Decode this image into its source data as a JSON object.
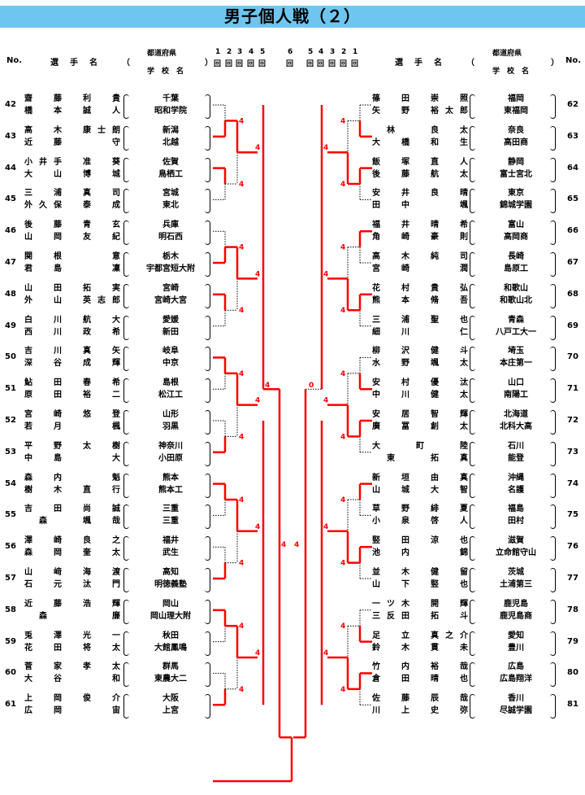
{
  "page": {
    "title": "男子個人戦（２）"
  },
  "headers": {
    "no": "No.",
    "name": "選　手　名",
    "open_paren": "（",
    "close_paren": "）",
    "pref": "都道府県",
    "school": "学　校　名",
    "rounds_left": [
      "1",
      "2",
      "3",
      "4",
      "5"
    ],
    "round_unit": "回",
    "round_center": "6",
    "rounds_right": [
      "5",
      "4",
      "3",
      "2",
      "1"
    ]
  },
  "left_entries": [
    {
      "no": "42",
      "p1": "齋　藤　利　貴",
      "p2": "橋　本　誠　人",
      "pref": "千葉",
      "school": "昭和学院"
    },
    {
      "no": "43",
      "p1": "高　木　康士朗",
      "p2": "近　藤　　　守",
      "pref": "新潟",
      "school": "北越"
    },
    {
      "no": "44",
      "p1": "小井手　准　葵",
      "p2": "大　山　博　城",
      "pref": "佐賀",
      "school": "鳥栖工"
    },
    {
      "no": "45",
      "p1": "三　浦　真　司",
      "p2": "外久保　泰　成",
      "pref": "宮城",
      "school": "東北"
    },
    {
      "no": "46",
      "p1": "後　藤　青　玄",
      "p2": "山　岡　友　紀",
      "pref": "兵庫",
      "school": "明石西"
    },
    {
      "no": "47",
      "p1": "関　根　　　意",
      "p2": "君　島　　　凜",
      "pref": "栃木",
      "school": "宇都宮短大附"
    },
    {
      "no": "48",
      "p1": "山　田　拓　実",
      "p2": "外　山　英志郎",
      "pref": "宮崎",
      "school": "宮崎大宮"
    },
    {
      "no": "49",
      "p1": "白　川　航　大",
      "p2": "西　川　政　希",
      "pref": "愛媛",
      "school": "新田"
    },
    {
      "no": "50",
      "p1": "吉　川　真　矢",
      "p2": "深　谷　成　輝",
      "pref": "岐阜",
      "school": "中京"
    },
    {
      "no": "51",
      "p1": "鮎　田　春　希",
      "p2": "原　田　裕　二",
      "pref": "島根",
      "school": "松江工"
    },
    {
      "no": "52",
      "p1": "宮　崎　悠　登",
      "p2": "若　月　　　楓",
      "pref": "山形",
      "school": "羽黒"
    },
    {
      "no": "53",
      "p1": "平　野　太　樹",
      "p2": "中　島　　　大",
      "pref": "神奈川",
      "school": "小田原"
    },
    {
      "no": "54",
      "p1": "森　内　　　魁",
      "p2": "樹　木　直　行",
      "pref": "熊本",
      "school": "熊本工"
    },
    {
      "no": "55",
      "p1": "吉　田　尚　誠",
      "p2": "　森　　颯　哉",
      "pref": "三重",
      "school": "三重"
    },
    {
      "no": "56",
      "p1": "澤　崎　良　之",
      "p2": "森　岡　奎　太",
      "pref": "福井",
      "school": "武生"
    },
    {
      "no": "57",
      "p1": "山　﨑　海　渡",
      "p2": "石　元　汰　門",
      "pref": "高知",
      "school": "明徳義塾"
    },
    {
      "no": "58",
      "p1": "近　藤　浩　輝",
      "p2": "　森　　　　廉",
      "pref": "岡山",
      "school": "岡山理大附"
    },
    {
      "no": "59",
      "p1": "兎　澤　光　一",
      "p2": "花　田　将　太",
      "pref": "秋田",
      "school": "大館鳳鳴"
    },
    {
      "no": "60",
      "p1": "菅　家　孝　太",
      "p2": "大　谷　　　和",
      "pref": "群馬",
      "school": "東農大二"
    },
    {
      "no": "61",
      "p1": "上　岡　俊　介",
      "p2": "広　岡　　　宙",
      "pref": "大阪",
      "school": "上宮"
    }
  ],
  "right_entries": [
    {
      "no": "62",
      "p1": "篠　田　崇　照",
      "p2": "矢　野　裕太郎",
      "pref": "福岡",
      "school": "東福岡"
    },
    {
      "no": "63",
      "p1": "　林　　良　太",
      "p2": "大　橋　和　生",
      "pref": "奈良",
      "school": "高田商"
    },
    {
      "no": "64",
      "p1": "飯　塚　直　人",
      "p2": "後　藤　航　太",
      "pref": "静岡",
      "school": "富士宮北"
    },
    {
      "no": "65",
      "p1": "安　井　良　晴",
      "p2": "田　中　　　颯",
      "pref": "東京",
      "school": "錦城学園"
    },
    {
      "no": "66",
      "p1": "福　井　晴　希",
      "p2": "角　崎　豪　則",
      "pref": "富山",
      "school": "高岡商"
    },
    {
      "no": "67",
      "p1": "高　木　純　司",
      "p2": "宮　崎　　　潤",
      "pref": "長崎",
      "school": "島原工"
    },
    {
      "no": "68",
      "p1": "花　村　貴　弘",
      "p2": "熊　本　脩　吾",
      "pref": "和歌山",
      "school": "和歌山北"
    },
    {
      "no": "69",
      "p1": "三　浦　聖　也",
      "p2": "細　川　　　仁",
      "pref": "青森",
      "school": "八戸工大一"
    },
    {
      "no": "70",
      "p1": "柳　沢　健　斗",
      "p2": "水　野　颯　太",
      "pref": "埼玉",
      "school": "本庄第一"
    },
    {
      "no": "71",
      "p1": "安　村　優　汰",
      "p2": "中　川　健　太",
      "pref": "山口",
      "school": "南陽工"
    },
    {
      "no": "72",
      "p1": "安　居　智　輝",
      "p2": "廣　冨　創　太",
      "pref": "北海道",
      "school": "北科大高"
    },
    {
      "no": "73",
      "p1": "大　　町　　陸",
      "p2": "　東　　拓　真",
      "pref": "石川",
      "school": "能登"
    },
    {
      "no": "74",
      "p1": "新　垣　由　真",
      "p2": "山　城　大　智",
      "pref": "沖縄",
      "school": "名護"
    },
    {
      "no": "75",
      "p1": "草　野　緋　夏",
      "p2": "小　泉　啓　人",
      "pref": "福島",
      "school": "田村"
    },
    {
      "no": "76",
      "p1": "竪　田　涼　也",
      "p2": "池　内　　　錦",
      "pref": "滋賀",
      "school": "立命館守山"
    },
    {
      "no": "77",
      "p1": "並　木　健　留",
      "p2": "山　下　竪　也",
      "pref": "茨城",
      "school": "土浦第三"
    },
    {
      "no": "78",
      "p1": "一ツ木　開　輝",
      "p2": "三反田　拓　斗",
      "pref": "鹿児島",
      "school": "鹿児島商"
    },
    {
      "no": "79",
      "p1": "足　立　真之介",
      "p2": "鈴　木　貫　未",
      "pref": "愛知",
      "school": "豊川"
    },
    {
      "no": "80",
      "p1": "竹　内　裕　哉",
      "p2": "倉　田　晴　也",
      "pref": "広島",
      "school": "広島翔洋"
    },
    {
      "no": "81",
      "p1": "佐　藤　辰　哉",
      "p2": "川　上　史　弥",
      "pref": "香川",
      "school": "尽誠学園"
    }
  ],
  "colors": {
    "banner": "#6ec6f0",
    "winner_line": "#ff0000",
    "loser_line": "#000000"
  }
}
